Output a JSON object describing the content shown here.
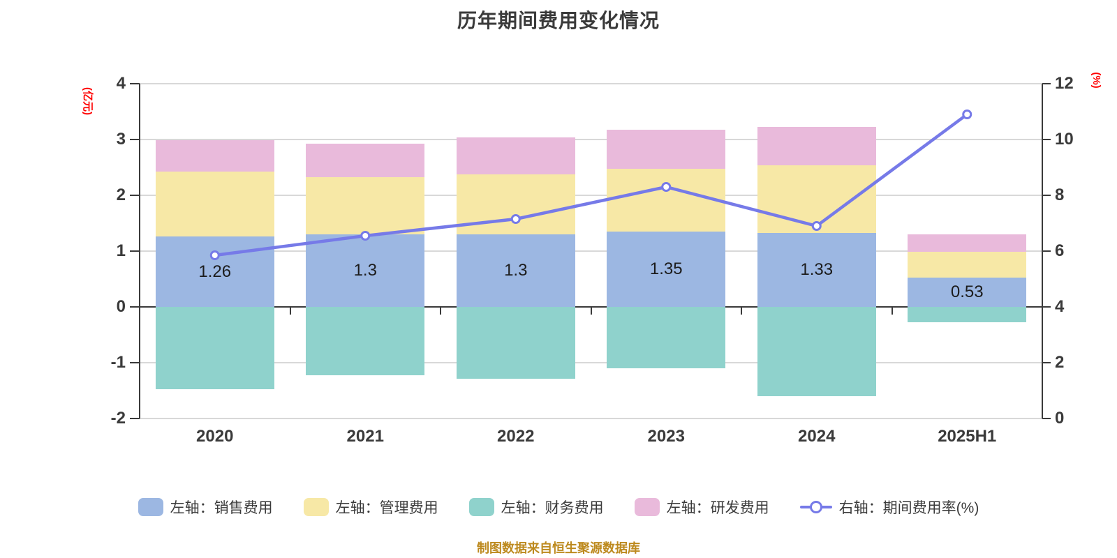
{
  "title": "历年期间费用变化情况",
  "source_note": "制图数据来自恒生聚源数据库",
  "left_axis": {
    "unit": "(亿元)",
    "ticks": [
      4,
      3,
      2,
      1,
      0,
      -1,
      -2
    ]
  },
  "right_axis": {
    "unit": "(%)",
    "ticks": [
      12,
      10,
      8,
      6,
      4,
      2,
      0
    ]
  },
  "colors": {
    "sales": "#9cb7e2",
    "mgmt": "#f7e8a6",
    "fin": "#8fd2cc",
    "rnd": "#e9badb",
    "rate": "#767ae8",
    "axis": "#3a3a3a",
    "grid": "#d8d8d8",
    "unit_red": "#ff0000",
    "source_orange": "#bd8a1f"
  },
  "legend": [
    {
      "key": "sales",
      "type": "bar",
      "label": "左轴：销售费用"
    },
    {
      "key": "mgmt",
      "type": "bar",
      "label": "左轴：管理费用"
    },
    {
      "key": "fin",
      "type": "bar",
      "label": "左轴：财务费用"
    },
    {
      "key": "rnd",
      "type": "bar",
      "label": "左轴：研发费用"
    },
    {
      "key": "rate",
      "type": "line",
      "label": "右轴：期间费用率(%)"
    }
  ],
  "chart_data": {
    "type": "bar",
    "subtype": "stacked-bar-with-line",
    "categories": [
      "2020",
      "2021",
      "2022",
      "2023",
      "2024",
      "2025H1"
    ],
    "left_ylim": [
      -2,
      4
    ],
    "right_ylim": [
      0,
      12
    ],
    "grid": true,
    "legend_position": "bottom",
    "series": [
      {
        "key": "sales",
        "name": "左轴：销售费用",
        "axis": "left",
        "type": "bar",
        "stack": true,
        "values": [
          1.26,
          1.3,
          1.3,
          1.35,
          1.33,
          0.53
        ],
        "labels": [
          "1.26",
          "1.3",
          "1.3",
          "1.35",
          "1.33",
          "0.53"
        ]
      },
      {
        "key": "mgmt",
        "name": "左轴：管理费用",
        "axis": "left",
        "type": "bar",
        "stack": true,
        "values": [
          1.16,
          1.03,
          1.08,
          1.13,
          1.21,
          0.46
        ]
      },
      {
        "key": "fin",
        "name": "左轴：财务费用",
        "axis": "left",
        "type": "bar",
        "stack": true,
        "values": [
          -1.48,
          -1.23,
          -1.29,
          -1.1,
          -1.6,
          -0.27
        ]
      },
      {
        "key": "rnd",
        "name": "左轴：研发费用",
        "axis": "left",
        "type": "bar",
        "stack": true,
        "values": [
          0.57,
          0.6,
          0.66,
          0.69,
          0.69,
          0.31
        ]
      },
      {
        "key": "rate",
        "name": "右轴：期间费用率(%)",
        "axis": "right",
        "type": "line",
        "values": [
          5.85,
          6.55,
          7.15,
          8.3,
          6.9,
          10.9
        ]
      }
    ]
  }
}
